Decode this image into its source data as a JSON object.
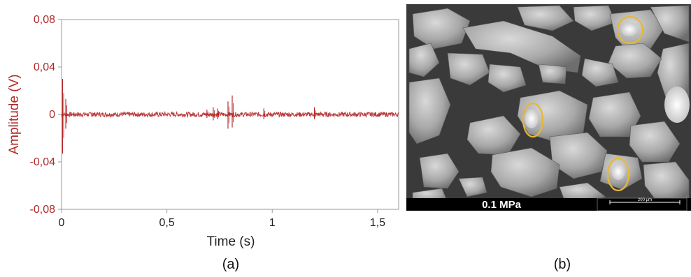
{
  "chart_data": {
    "type": "line",
    "xlabel": "Time (s)",
    "ylabel": "Amplitude (V)",
    "xlim": [
      0,
      1.6
    ],
    "ylim": [
      -0.08,
      0.08
    ],
    "x_ticks": [
      {
        "value": 0,
        "label": "0"
      },
      {
        "value": 0.5,
        "label": "0,5"
      },
      {
        "value": 1,
        "label": "1"
      },
      {
        "value": 1.5,
        "label": "1,5"
      }
    ],
    "y_ticks": [
      {
        "value": 0.08,
        "label": "0,08"
      },
      {
        "value": 0.04,
        "label": "0,04"
      },
      {
        "value": 0,
        "label": "0"
      },
      {
        "value": -0.04,
        "label": "-0,04"
      },
      {
        "value": -0.08,
        "label": "-0,08"
      }
    ],
    "series": [
      {
        "color": "#b22222",
        "baseline": 0,
        "noise_amplitude": 0.002,
        "bursts": [
          {
            "t": 0.005,
            "min": -0.033,
            "max": 0.03
          },
          {
            "t": 0.02,
            "min": -0.012,
            "max": 0.013
          },
          {
            "t": 0.145,
            "min": -0.002,
            "max": 0.002
          },
          {
            "t": 0.69,
            "min": -0.003,
            "max": 0.004
          },
          {
            "t": 0.72,
            "min": -0.005,
            "max": 0.006
          },
          {
            "t": 0.74,
            "min": -0.004,
            "max": 0.005
          },
          {
            "t": 0.79,
            "min": -0.012,
            "max": 0.011
          },
          {
            "t": 0.81,
            "min": -0.011,
            "max": 0.016
          },
          {
            "t": 0.96,
            "min": -0.004,
            "max": 0.005
          },
          {
            "t": 1.2,
            "min": -0.004,
            "max": 0.006
          }
        ]
      }
    ],
    "grid": false
  },
  "panel_labels": {
    "a": "(a)",
    "b": "(b)"
  },
  "sem_image": {
    "caption": "0.1 MPa",
    "scale_bar_label": "200 µm",
    "highlight_color": "#e8b830"
  }
}
